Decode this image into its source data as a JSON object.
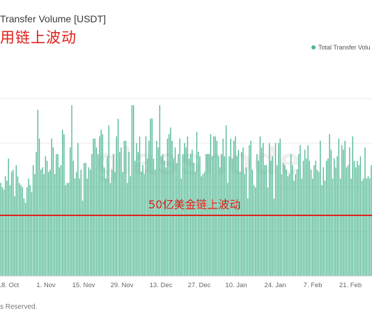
{
  "header": {
    "title": "Transfer Volume [USDT]",
    "subtitle": "用链上波动"
  },
  "legend": {
    "label": "Total Transfer Volu",
    "color": "#4fb892"
  },
  "watermark": "glassnode",
  "annotation": {
    "label": "50亿美金链上波动",
    "color": "#e0201b"
  },
  "footer": {
    "text": "s Reserved."
  },
  "chart_data": {
    "type": "bar",
    "title": "Transfer Volume [USDT]",
    "series": [
      {
        "name": "Total Transfer Volu",
        "color": "#4fb892",
        "values": [
          0.42,
          0.4,
          0.39,
          0.45,
          0.43,
          0.53,
          0.41,
          0.47,
          0.48,
          0.36,
          0.5,
          0.45,
          0.42,
          0.41,
          0.4,
          0.35,
          0.33,
          0.4,
          0.44,
          0.41,
          0.38,
          0.5,
          0.46,
          0.56,
          0.75,
          0.62,
          0.48,
          0.49,
          0.46,
          0.54,
          0.52,
          0.47,
          0.48,
          0.62,
          0.58,
          0.46,
          0.55,
          0.55,
          0.49,
          0.5,
          0.66,
          0.64,
          0.41,
          0.42,
          0.42,
          0.58,
          0.77,
          0.52,
          0.44,
          0.47,
          0.6,
          0.44,
          0.48,
          0.34,
          0.51,
          0.51,
          0.44,
          0.49,
          0.48,
          0.55,
          0.62,
          0.62,
          0.58,
          0.55,
          0.63,
          0.66,
          0.64,
          0.49,
          0.44,
          0.54,
          0.68,
          0.42,
          0.48,
          0.55,
          0.47,
          0.63,
          0.71,
          0.56,
          0.58,
          0.47,
          0.61,
          0.61,
          0.42,
          0.56,
          0.45,
          0.77,
          0.77,
          0.52,
          0.6,
          0.56,
          0.63,
          0.47,
          0.5,
          0.46,
          0.63,
          0.53,
          0.61,
          0.71,
          0.71,
          0.53,
          0.48,
          0.61,
          0.58,
          0.77,
          0.54,
          0.55,
          0.52,
          0.49,
          0.62,
          0.64,
          0.67,
          0.61,
          0.53,
          0.58,
          0.51,
          0.55,
          0.62,
          0.44,
          0.55,
          0.6,
          0.58,
          0.63,
          0.53,
          0.55,
          0.57,
          0.51,
          0.47,
          0.65,
          0.56,
          0.54,
          0.45,
          0.46,
          0.47,
          0.55,
          0.55,
          0.55,
          0.64,
          0.54,
          0.63,
          0.63,
          0.61,
          0.54,
          0.49,
          0.55,
          0.62,
          0.54,
          0.68,
          0.42,
          0.54,
          0.62,
          0.53,
          0.61,
          0.63,
          0.54,
          0.57,
          0.47,
          0.56,
          0.58,
          0.46,
          0.49,
          0.35,
          0.59,
          0.61,
          0.48,
          0.41,
          0.4,
          0.55,
          0.52,
          0.63,
          0.58,
          0.6,
          0.5,
          0.5,
          0.4,
          0.6,
          0.52,
          0.54,
          0.35,
          0.6,
          0.5,
          0.6,
          0.62,
          0.46,
          0.51,
          0.5,
          0.48,
          0.45,
          0.46,
          0.55,
          0.5,
          0.43,
          0.46,
          0.48,
          0.55,
          0.59,
          0.44,
          0.52,
          0.57,
          0.53,
          0.59,
          0.52,
          0.48,
          0.44,
          0.5,
          0.52,
          0.48,
          0.47,
          0.61,
          0.41,
          0.49,
          0.43,
          0.52,
          0.53,
          0.64,
          0.57,
          0.44,
          0.53,
          0.49,
          0.54,
          0.62,
          0.44,
          0.59,
          0.57,
          0.61,
          0.49,
          0.5,
          0.58,
          0.44,
          0.63,
          0.52,
          0.49,
          0.52,
          0.5,
          0.54,
          0.43,
          0.44,
          0.58,
          0.44,
          0.45,
          0.44,
          0.5
        ]
      }
    ],
    "x_tick_labels": [
      "18. Oct",
      "1. Nov",
      "15. Nov",
      "29. Nov",
      "13. Dec",
      "27. Dec",
      "10. Jan",
      "24. Jan",
      "7. Feb",
      "21. Feb"
    ],
    "grid": "horizontal",
    "legend_position": "top-right",
    "reference_line": {
      "label": "50亿美金链上波动"
    }
  }
}
